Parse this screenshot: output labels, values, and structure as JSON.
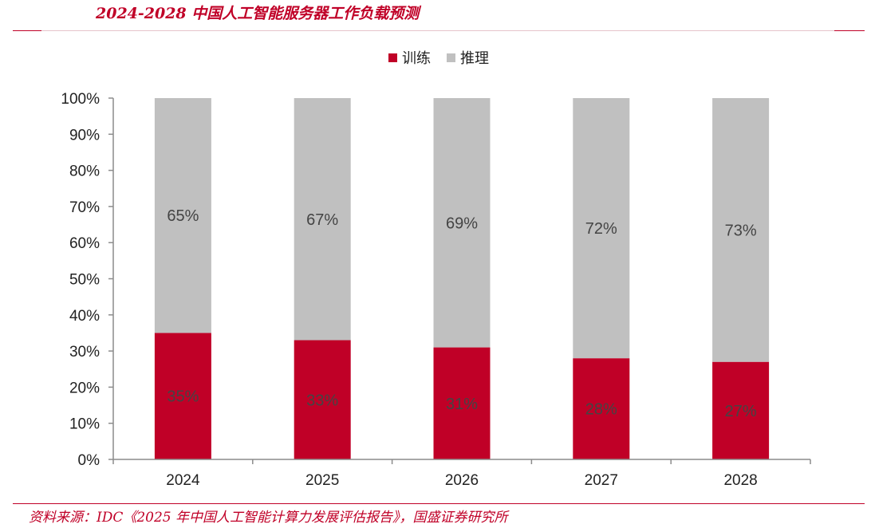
{
  "page": {
    "title": "2024-2028 中国人工智能服务器工作负载预测",
    "source": "资料来源：IDC《2025 年中国人工智能计算力发展评估报告》，国盛证券研究所"
  },
  "colors": {
    "training": "#c00027",
    "inference": "#c0c0c0",
    "accent": "#c00027"
  },
  "chart_data": {
    "type": "bar",
    "stacked": true,
    "categories": [
      "2024",
      "2025",
      "2026",
      "2027",
      "2028"
    ],
    "series": [
      {
        "name": "训练",
        "values": [
          35,
          33,
          31,
          28,
          27
        ],
        "labels": [
          "35%",
          "33%",
          "31%",
          "28%",
          "27%"
        ]
      },
      {
        "name": "推理",
        "values": [
          65,
          67,
          69,
          72,
          73
        ],
        "labels": [
          "65%",
          "67%",
          "69%",
          "72%",
          "73%"
        ]
      }
    ],
    "ylim": [
      0,
      100
    ],
    "yticks": [
      "0%",
      "10%",
      "20%",
      "30%",
      "40%",
      "50%",
      "60%",
      "70%",
      "80%",
      "90%",
      "100%"
    ],
    "legend": "top-center",
    "grid": false
  }
}
